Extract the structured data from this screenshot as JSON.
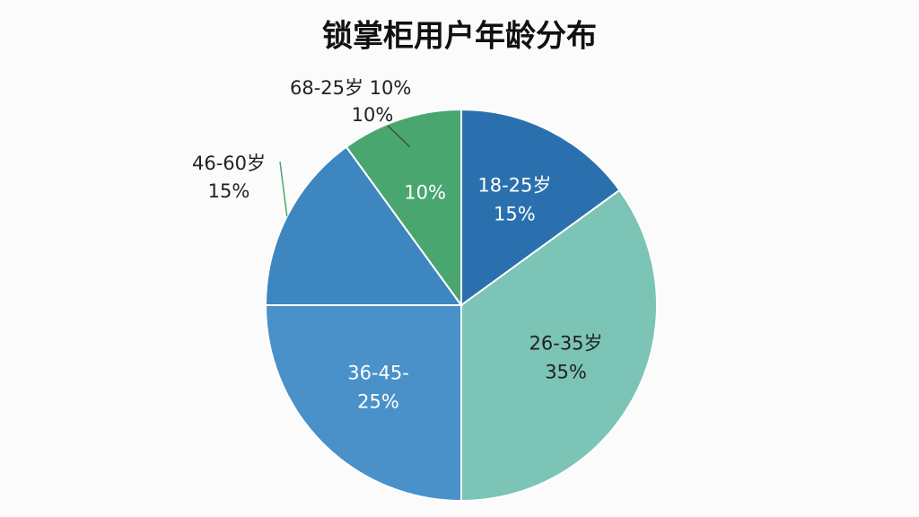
{
  "chart_data": {
    "type": "pie",
    "title": "锁掌柜用户年龄分布",
    "categories": [
      "18-25岁",
      "26-35岁",
      "36-45-",
      "46-60岁",
      "68-25岁"
    ],
    "values": [
      15,
      35,
      25,
      15,
      10
    ],
    "value_labels": [
      "15%",
      "35%",
      "25%",
      "15%",
      "10%"
    ],
    "colors": [
      "#2b70ae",
      "#7cc4b6",
      "#4a91c9",
      "#3d86c0",
      "#4aa66f"
    ]
  }
}
